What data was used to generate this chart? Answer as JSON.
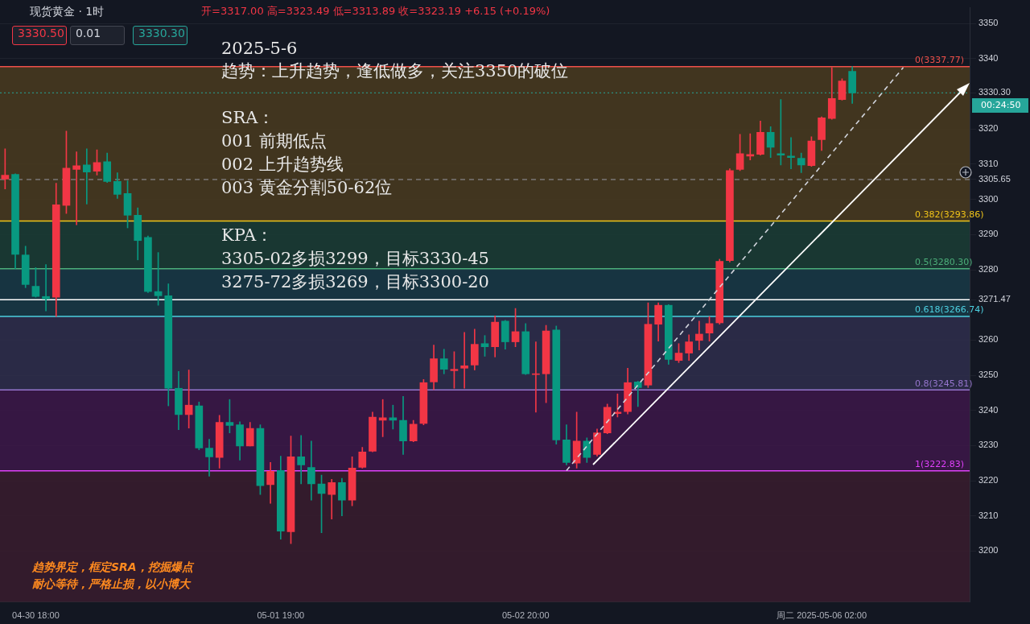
{
  "chart_data": {
    "type": "candlestick",
    "title": "现货黄金 · 1时",
    "subtitle": "开=3317.00 高=3323.49 低=3313.89 收=3323.19 +6.15 (+0.19%)",
    "categories": [
      null,
      null,
      null,
      "04-30 18:00",
      null,
      null,
      null,
      null,
      null,
      null,
      null,
      null,
      null,
      null,
      null,
      null,
      null,
      null,
      null,
      null,
      null,
      null,
      null,
      null,
      null,
      null,
      null,
      "05-01 19:00",
      null,
      null,
      null,
      null,
      null,
      null,
      null,
      null,
      null,
      null,
      null,
      null,
      null,
      null,
      null,
      null,
      null,
      null,
      null,
      null,
      null,
      null,
      null,
      "05-02 20:00",
      null,
      null,
      null,
      null,
      null,
      null,
      null,
      null,
      null,
      null,
      null,
      null,
      null,
      null,
      null,
      null,
      null,
      null,
      null,
      null,
      null,
      null,
      null,
      null,
      null,
      null,
      null,
      null,
      "周二 2025-05-06 02:00",
      null,
      null,
      null,
      null,
      null,
      null,
      null,
      null,
      null,
      null,
      null,
      null,
      null,
      null
    ],
    "ohlc": [
      [
        3305.8,
        3314.4,
        3303.0,
        3306.9
      ],
      [
        3307.1,
        3307.3,
        3280.3,
        3284.4
      ],
      [
        3284.2,
        3286.7,
        3274.9,
        3275.8
      ],
      [
        3275.3,
        3280.6,
        3272.2,
        3272.4
      ],
      [
        3272.4,
        3281.5,
        3268.3,
        3271.7
      ],
      [
        3272.2,
        3304.6,
        3266.7,
        3298.5
      ],
      [
        3298.3,
        3319.4,
        3296.0,
        3308.9
      ],
      [
        3308.5,
        3313.5,
        3292.8,
        3309.6
      ],
      [
        3309.8,
        3314.4,
        3298.7,
        3307.8
      ],
      [
        3308.0,
        3314.1,
        3306.9,
        3310.5
      ],
      [
        3310.7,
        3313.2,
        3304.8,
        3305.1
      ],
      [
        3305.1,
        3307.6,
        3300.3,
        3301.4
      ],
      [
        3301.7,
        3305.3,
        3291.9,
        3295.5
      ],
      [
        3295.5,
        3297.6,
        3282.8,
        3288.3
      ],
      [
        3289.2,
        3289.6,
        3273.5,
        3273.8
      ],
      [
        3273.8,
        3284.9,
        3269.9,
        3272.6
      ],
      [
        3272.6,
        3276.0,
        3241.3,
        3246.3
      ],
      [
        3246.3,
        3251.1,
        3234.5,
        3238.8
      ],
      [
        3238.8,
        3251.5,
        3235.0,
        3241.5
      ],
      [
        3241.3,
        3242.4,
        3228.8,
        3229.3
      ],
      [
        3229.3,
        3231.8,
        3221.3,
        3226.8
      ],
      [
        3226.6,
        3238.6,
        3223.6,
        3236.6
      ],
      [
        3236.6,
        3243.1,
        3233.6,
        3235.7
      ],
      [
        3235.9,
        3236.8,
        3225.9,
        3229.9
      ],
      [
        3229.9,
        3236.6,
        3229.9,
        3234.9
      ],
      [
        3234.9,
        3235.9,
        3216.1,
        3218.6
      ],
      [
        3218.9,
        3225.2,
        3213.6,
        3222.7
      ],
      [
        3222.9,
        3227.0,
        3203.4,
        3205.7
      ],
      [
        3205.5,
        3232.7,
        3202.1,
        3226.8
      ],
      [
        3226.8,
        3232.9,
        3219.1,
        3224.5
      ],
      [
        3223.8,
        3231.3,
        3214.5,
        3219.1
      ],
      [
        3219.1,
        3221.6,
        3205.2,
        3216.4
      ],
      [
        3216.1,
        3220.4,
        3209.1,
        3219.5
      ],
      [
        3219.5,
        3220.7,
        3210.0,
        3214.5
      ],
      [
        3214.5,
        3226.8,
        3212.9,
        3223.6
      ],
      [
        3223.8,
        3229.5,
        3223.6,
        3228.2
      ],
      [
        3228.4,
        3239.5,
        3228.2,
        3238.1
      ],
      [
        3237.2,
        3243.1,
        3232.5,
        3237.9
      ],
      [
        3237.9,
        3241.5,
        3234.7,
        3237.2
      ],
      [
        3237.2,
        3244.0,
        3227.5,
        3231.3
      ],
      [
        3231.3,
        3237.2,
        3231.1,
        3236.1
      ],
      [
        3236.3,
        3248.8,
        3235.9,
        3247.9
      ],
      [
        3248.1,
        3258.6,
        3245.9,
        3254.7
      ],
      [
        3254.7,
        3257.4,
        3250.4,
        3251.7
      ],
      [
        3251.3,
        3256.7,
        3246.3,
        3251.7
      ],
      [
        3252.0,
        3262.2,
        3246.3,
        3252.7
      ],
      [
        3252.9,
        3263.1,
        3251.5,
        3258.8
      ],
      [
        3259.0,
        3261.3,
        3255.4,
        3258.1
      ],
      [
        3258.1,
        3266.9,
        3255.2,
        3265.1
      ],
      [
        3265.4,
        3265.6,
        3257.4,
        3259.5
      ],
      [
        3259.5,
        3269.0,
        3258.1,
        3262.4
      ],
      [
        3262.4,
        3264.7,
        3250.2,
        3250.4
      ],
      [
        3250.2,
        3259.5,
        3239.5,
        3250.4
      ],
      [
        3250.4,
        3264.2,
        3242.2,
        3262.6
      ],
      [
        3262.9,
        3264.0,
        3230.4,
        3231.6
      ],
      [
        3231.6,
        3235.9,
        3224.5,
        3225.2
      ],
      [
        3225.0,
        3239.5,
        3223.6,
        3231.3
      ],
      [
        3231.3,
        3232.2,
        3225.2,
        3226.6
      ],
      [
        3227.5,
        3234.7,
        3227.0,
        3233.6
      ],
      [
        3233.6,
        3241.8,
        3233.4,
        3240.9
      ],
      [
        3239.1,
        3244.7,
        3238.1,
        3239.5
      ],
      [
        3239.7,
        3252.0,
        3239.0,
        3247.9
      ],
      [
        3248.1,
        3248.3,
        3241.1,
        3246.5
      ],
      [
        3247.2,
        3270.6,
        3246.5,
        3264.5
      ],
      [
        3264.5,
        3270.6,
        3259.7,
        3269.9
      ],
      [
        3269.9,
        3270.1,
        3253.1,
        3254.5
      ],
      [
        3254.2,
        3259.0,
        3253.6,
        3256.3
      ],
      [
        3256.3,
        3261.5,
        3254.2,
        3259.5
      ],
      [
        3259.9,
        3265.4,
        3257.2,
        3261.7
      ],
      [
        3262.0,
        3266.7,
        3259.7,
        3264.7
      ],
      [
        3264.9,
        3283.0,
        3264.5,
        3282.4
      ],
      [
        3282.6,
        3308.7,
        3282.2,
        3308.2
      ],
      [
        3308.5,
        3318.5,
        3308.2,
        3313.0
      ],
      [
        3312.3,
        3318.7,
        3311.2,
        3312.8
      ],
      [
        3312.8,
        3322.3,
        3312.6,
        3319.1
      ],
      [
        3319.1,
        3320.7,
        3311.9,
        3314.8
      ],
      [
        3313.0,
        3328.4,
        3309.8,
        3312.6
      ],
      [
        3312.3,
        3317.6,
        3308.7,
        3311.9
      ],
      [
        3311.7,
        3313.2,
        3307.6,
        3309.8
      ],
      [
        3309.6,
        3317.8,
        3309.4,
        3316.6
      ],
      [
        3317.0,
        3323.49,
        3313.89,
        3323.19
      ],
      [
        3323.0,
        3337.5,
        3322.8,
        3328.7
      ],
      [
        3328.4,
        3334.3,
        3328.2,
        3333.7
      ],
      [
        3336.4,
        3337.77,
        3327.3,
        3330.3
      ],
      null,
      null,
      null,
      null,
      null,
      null,
      null,
      null,
      null,
      null,
      null
    ],
    "colors": [
      "#f23645",
      "#089981",
      "#089981",
      "#089981",
      "#089981",
      "#f23645",
      "#f23645",
      "#f23645",
      "#089981",
      "#f23645",
      "#089981",
      "#089981",
      "#089981",
      "#089981",
      "#089981",
      "#089981",
      "#089981",
      "#089981",
      "#f23645",
      "#089981",
      "#089981",
      "#f23645",
      "#089981",
      "#089981",
      "#f23645",
      "#089981",
      "#f23645",
      "#089981",
      "#f23645",
      "#089981",
      "#089981",
      "#089981",
      "#f23645",
      "#089981",
      "#f23645",
      "#f23645",
      "#f23645",
      "#f23645",
      "#089981",
      "#089981",
      "#f23645",
      "#f23645",
      "#f23645",
      "#089981",
      "#f23645",
      "#f23645",
      "#f23645",
      "#089981",
      "#f23645",
      "#089981",
      "#f23645",
      "#089981",
      "#f23645",
      "#f23645",
      "#089981",
      "#089981",
      "#f23645",
      "#089981",
      "#f23645",
      "#f23645",
      "#f23645",
      "#f23645",
      "#089981",
      "#f23645",
      "#f23645",
      "#089981",
      "#f23645",
      "#f23645",
      "#f23645",
      "#f23645",
      "#f23645",
      "#f23645",
      "#f23645",
      "#f23645",
      "#f23645",
      "#089981",
      "#089981",
      "#089981",
      "#089981",
      "#f23645",
      "#f23645",
      "#f23645",
      "#f23645",
      "#089981",
      null,
      null,
      null,
      null,
      null,
      null,
      null,
      null,
      null,
      null,
      null
    ],
    "series": [
      {
        "type": "line",
        "color": "#d1d4dc",
        "line_style": "dashed",
        "values": [
          null,
          null,
          null,
          null,
          null,
          null,
          null,
          null,
          null,
          null,
          null,
          null,
          null,
          null,
          null,
          null,
          null,
          null,
          null,
          null,
          null,
          null,
          null,
          null,
          null,
          null,
          null,
          null,
          null,
          null,
          null,
          null,
          null,
          null,
          null,
          null,
          null,
          null,
          null,
          null,
          null,
          null,
          null,
          null,
          null,
          null,
          null,
          null,
          null,
          null,
          null,
          null,
          null,
          null,
          null,
          3222.9,
          null,
          null,
          null,
          null,
          null,
          null,
          null,
          null,
          null,
          null,
          null,
          null,
          null,
          null,
          null,
          null,
          null,
          null,
          null,
          null,
          null,
          null,
          null,
          null,
          null,
          null,
          null,
          null,
          null,
          null,
          null,
          null,
          3337.5,
          null,
          null,
          null,
          null,
          null,
          null
        ]
      }
    ],
    "ylim": [
      3185.5,
      3354.5
    ],
    "yticks": [
      3200,
      3210,
      3220,
      3230,
      3240,
      3250,
      3260,
      {
        "value": 3271.47,
        "label": "3271.47"
      },
      3280,
      3290,
      3300,
      {
        "value": 3305.65,
        "label": "3305.65"
      },
      3310,
      3320,
      {
        "value": 3330.3,
        "label": "3330.30"
      },
      3340,
      3350
    ],
    "grid": "y",
    "legend": false,
    "bands": [
      {
        "axis": "y",
        "from": 3293.86,
        "to": 3337.77,
        "color": "#4a3b1e"
      },
      {
        "axis": "y",
        "from": 3280.3,
        "to": 3293.86,
        "color": "#1b3d35"
      },
      {
        "axis": "y",
        "from": 3266.74,
        "to": 3280.3,
        "color": "#193a46"
      },
      {
        "axis": "y",
        "from": 3245.81,
        "to": 3266.74,
        "color": "#2f2e4c"
      },
      {
        "axis": "y",
        "from": 3222.83,
        "to": 3245.81,
        "color": "#3d1849"
      },
      {
        "axis": "y",
        "from": 3185.5,
        "to": 3222.83,
        "color": "#3a1c2e"
      }
    ],
    "ref_lines": [
      {
        "axis": "y",
        "value": 3337.77,
        "label": "0(3337.77)",
        "color": "#f0504a"
      },
      {
        "axis": "y",
        "value": 3293.86,
        "label": "0.382(3293.86)",
        "color": "#f0c419"
      },
      {
        "axis": "y",
        "value": 3280.3,
        "label": "0.5(3280.30)",
        "color": "#4caf7a"
      },
      {
        "axis": "y",
        "value": 3266.74,
        "label": "0.618(3266.74)",
        "color": "#4dd0e1"
      },
      {
        "axis": "y",
        "value": 3245.81,
        "label": "0.8(3245.81)",
        "color": "#9575cd"
      },
      {
        "axis": "y",
        "value": 3222.83,
        "label": "1(3222.83)",
        "color": "#e040fb"
      },
      {
        "axis": "y",
        "value": 3271.47,
        "color": "#ffffff"
      },
      {
        "axis": "y",
        "value": 3305.65,
        "color": "#9598a1",
        "line_style": "dashed"
      },
      {
        "axis": "y",
        "value": 3330.3,
        "color": "#26a69a",
        "line_style": "dotted"
      }
    ],
    "annotations": [
      "2025-5-6",
      "趋势：上升趋势，逢低做多，关注3350的破位",
      "SRA：",
      "001 前期低点",
      "002 上升趋势线",
      "003 黄金分割50-62位",
      "KPA：",
      "3305-02多损3299，目标3330-45",
      "3275-72多损3269，目标3300-20",
      "3330.50",
      "0.01",
      "3330.30",
      "00:24:50",
      "趋势界定，框定SRA，挖掘爆点",
      "耐心等待，严格止损，以小博大"
    ]
  }
}
